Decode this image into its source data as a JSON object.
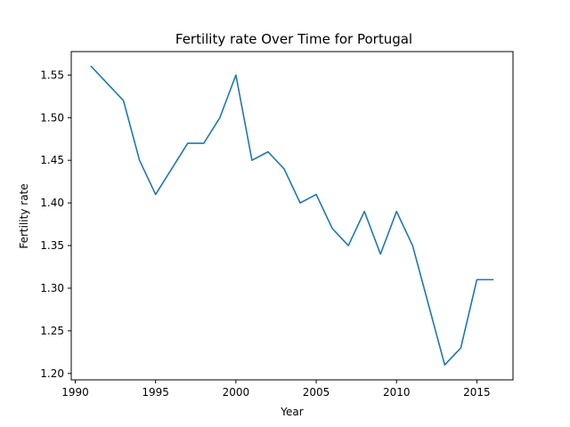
{
  "chart_data": {
    "type": "line",
    "title": "Fertility rate Over Time for Portugal",
    "xlabel": "Year",
    "ylabel": "Fertility rate",
    "xlim": [
      1989.75,
      2017.25
    ],
    "ylim": [
      1.1925,
      1.5775
    ],
    "x_ticks": [
      1990,
      1995,
      2000,
      2005,
      2010,
      2015
    ],
    "y_ticks": [
      1.2,
      1.25,
      1.3,
      1.35,
      1.4,
      1.45,
      1.5,
      1.55
    ],
    "grid": false,
    "series": [
      {
        "color": "#1f77b4",
        "x": [
          1991,
          1992,
          1993,
          1994,
          1995,
          1996,
          1997,
          1998,
          1999,
          2000,
          2001,
          2002,
          2003,
          2004,
          2005,
          2006,
          2007,
          2008,
          2009,
          2010,
          2011,
          2012,
          2013,
          2014,
          2015,
          2016
        ],
        "y": [
          1.56,
          1.54,
          1.52,
          1.45,
          1.41,
          1.44,
          1.47,
          1.47,
          1.5,
          1.55,
          1.45,
          1.46,
          1.44,
          1.4,
          1.41,
          1.37,
          1.35,
          1.39,
          1.34,
          1.39,
          1.35,
          1.28,
          1.21,
          1.23,
          1.31,
          1.31
        ]
      }
    ]
  }
}
